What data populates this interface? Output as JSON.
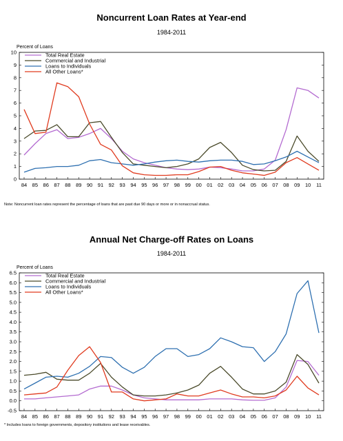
{
  "chart_data": [
    {
      "type": "line",
      "title": "Noncurrent Loan Rates at Year-end",
      "subtitle": "1984-2011",
      "ylabel": "Percent of Loans",
      "ylim": [
        0,
        10
      ],
      "yticks": [
        "0",
        "1",
        "2",
        "3",
        "4",
        "5",
        "6",
        "7",
        "8",
        "9",
        "10"
      ],
      "categories": [
        "84",
        "85",
        "86",
        "87",
        "88",
        "89",
        "90",
        "91",
        "92",
        "93",
        "94",
        "95",
        "96",
        "97",
        "98",
        "99",
        "00",
        "01",
        "02",
        "03",
        "04",
        "05",
        "06",
        "07",
        "08",
        "09",
        "10",
        "11"
      ],
      "legend_position": "top-left",
      "grid": false,
      "series": [
        {
          "name": "Total Real Estate",
          "color": "#b36ad0",
          "values": [
            1.9,
            2.8,
            3.6,
            3.9,
            3.2,
            3.3,
            3.6,
            4.0,
            3.2,
            2.2,
            1.6,
            1.3,
            1.1,
            0.9,
            0.8,
            0.75,
            0.8,
            0.95,
            0.9,
            0.8,
            0.65,
            0.65,
            0.8,
            1.5,
            3.9,
            7.2,
            7.0,
            6.4
          ]
        },
        {
          "name": "Commercial and Industrial",
          "color": "#4a4a2a",
          "values": [
            3.2,
            3.8,
            3.85,
            4.3,
            3.35,
            3.35,
            4.45,
            4.55,
            3.3,
            2.1,
            1.2,
            1.1,
            1.0,
            0.9,
            1.0,
            1.2,
            1.6,
            2.5,
            2.9,
            2.1,
            1.1,
            0.75,
            0.65,
            0.7,
            1.4,
            3.4,
            2.2,
            1.4
          ]
        },
        {
          "name": "Loans to Individuals",
          "color": "#2d6fb0",
          "values": [
            0.55,
            0.85,
            0.9,
            1.0,
            1.0,
            1.1,
            1.45,
            1.55,
            1.3,
            1.2,
            1.1,
            1.2,
            1.35,
            1.45,
            1.5,
            1.4,
            1.35,
            1.45,
            1.5,
            1.5,
            1.4,
            1.15,
            1.2,
            1.45,
            1.75,
            2.2,
            1.75,
            1.3
          ]
        },
        {
          "name": "All Other Loans*",
          "color": "#e03a1e",
          "values": [
            5.5,
            3.6,
            3.7,
            7.6,
            7.3,
            6.5,
            4.35,
            2.75,
            2.3,
            1.05,
            0.5,
            0.35,
            0.3,
            0.3,
            0.35,
            0.35,
            0.6,
            0.95,
            1.0,
            0.7,
            0.5,
            0.4,
            0.3,
            0.55,
            1.3,
            1.7,
            1.2,
            0.7
          ]
        }
      ],
      "note": "Note: Noncurrent loan rates represent the percentage of loans that are past due 90 days or more or in nonaccrual status."
    },
    {
      "type": "line",
      "title": "Annual Net Charge-off Rates on Loans",
      "subtitle": "1984-2011",
      "ylabel": "Percent of Loans",
      "ylim": [
        -0.5,
        6.5
      ],
      "yticks": [
        "-0.5",
        "0.0",
        "0.5",
        "1.0",
        "1.5",
        "2.0",
        "2.5",
        "3.0",
        "3.5",
        "4.0",
        "4.5",
        "5.0",
        "5.5",
        "6.0",
        "6.5"
      ],
      "categories": [
        "84",
        "85",
        "86",
        "87",
        "88",
        "89",
        "90",
        "91",
        "92",
        "93",
        "94",
        "95",
        "96",
        "97",
        "98",
        "99",
        "00",
        "01",
        "02",
        "03",
        "04",
        "05",
        "06",
        "07",
        "08",
        "09",
        "10",
        "11"
      ],
      "legend_position": "top-left",
      "grid": false,
      "series": [
        {
          "name": "Total Real Estate",
          "color": "#b36ad0",
          "values": [
            0.1,
            0.1,
            0.15,
            0.2,
            0.25,
            0.3,
            0.6,
            0.75,
            0.75,
            0.55,
            0.3,
            0.15,
            0.1,
            0.05,
            0.05,
            0.05,
            0.05,
            0.1,
            0.1,
            0.1,
            0.05,
            0.03,
            0.03,
            0.15,
            0.7,
            2.05,
            2.0,
            1.3
          ]
        },
        {
          "name": "Commercial and Industrial",
          "color": "#4a4a2a",
          "values": [
            1.3,
            1.35,
            1.45,
            1.1,
            1.05,
            1.05,
            1.4,
            1.9,
            1.2,
            0.7,
            0.3,
            0.25,
            0.25,
            0.3,
            0.4,
            0.55,
            0.8,
            1.4,
            1.75,
            1.2,
            0.6,
            0.35,
            0.35,
            0.5,
            0.95,
            2.35,
            1.85,
            0.9
          ]
        },
        {
          "name": "Loans to Individuals",
          "color": "#2d6fb0",
          "values": [
            0.6,
            0.9,
            1.2,
            1.25,
            1.2,
            1.4,
            1.75,
            2.25,
            2.2,
            1.7,
            1.4,
            1.7,
            2.25,
            2.65,
            2.65,
            2.25,
            2.35,
            2.65,
            3.2,
            3.0,
            2.75,
            2.7,
            2.0,
            2.5,
            3.4,
            5.45,
            6.1,
            3.45
          ]
        },
        {
          "name": "All Other Loans*",
          "color": "#e03a1e",
          "values": [
            0.3,
            0.35,
            0.4,
            0.7,
            1.55,
            2.3,
            2.75,
            1.95,
            0.45,
            0.45,
            0.1,
            0.0,
            0.05,
            0.1,
            0.35,
            0.25,
            0.25,
            0.4,
            0.55,
            0.35,
            0.2,
            0.2,
            0.15,
            0.25,
            0.55,
            1.25,
            0.65,
            0.3
          ]
        }
      ],
      "note": "* Includes loans to foreign governments, depository institutions and lease receivables."
    }
  ]
}
